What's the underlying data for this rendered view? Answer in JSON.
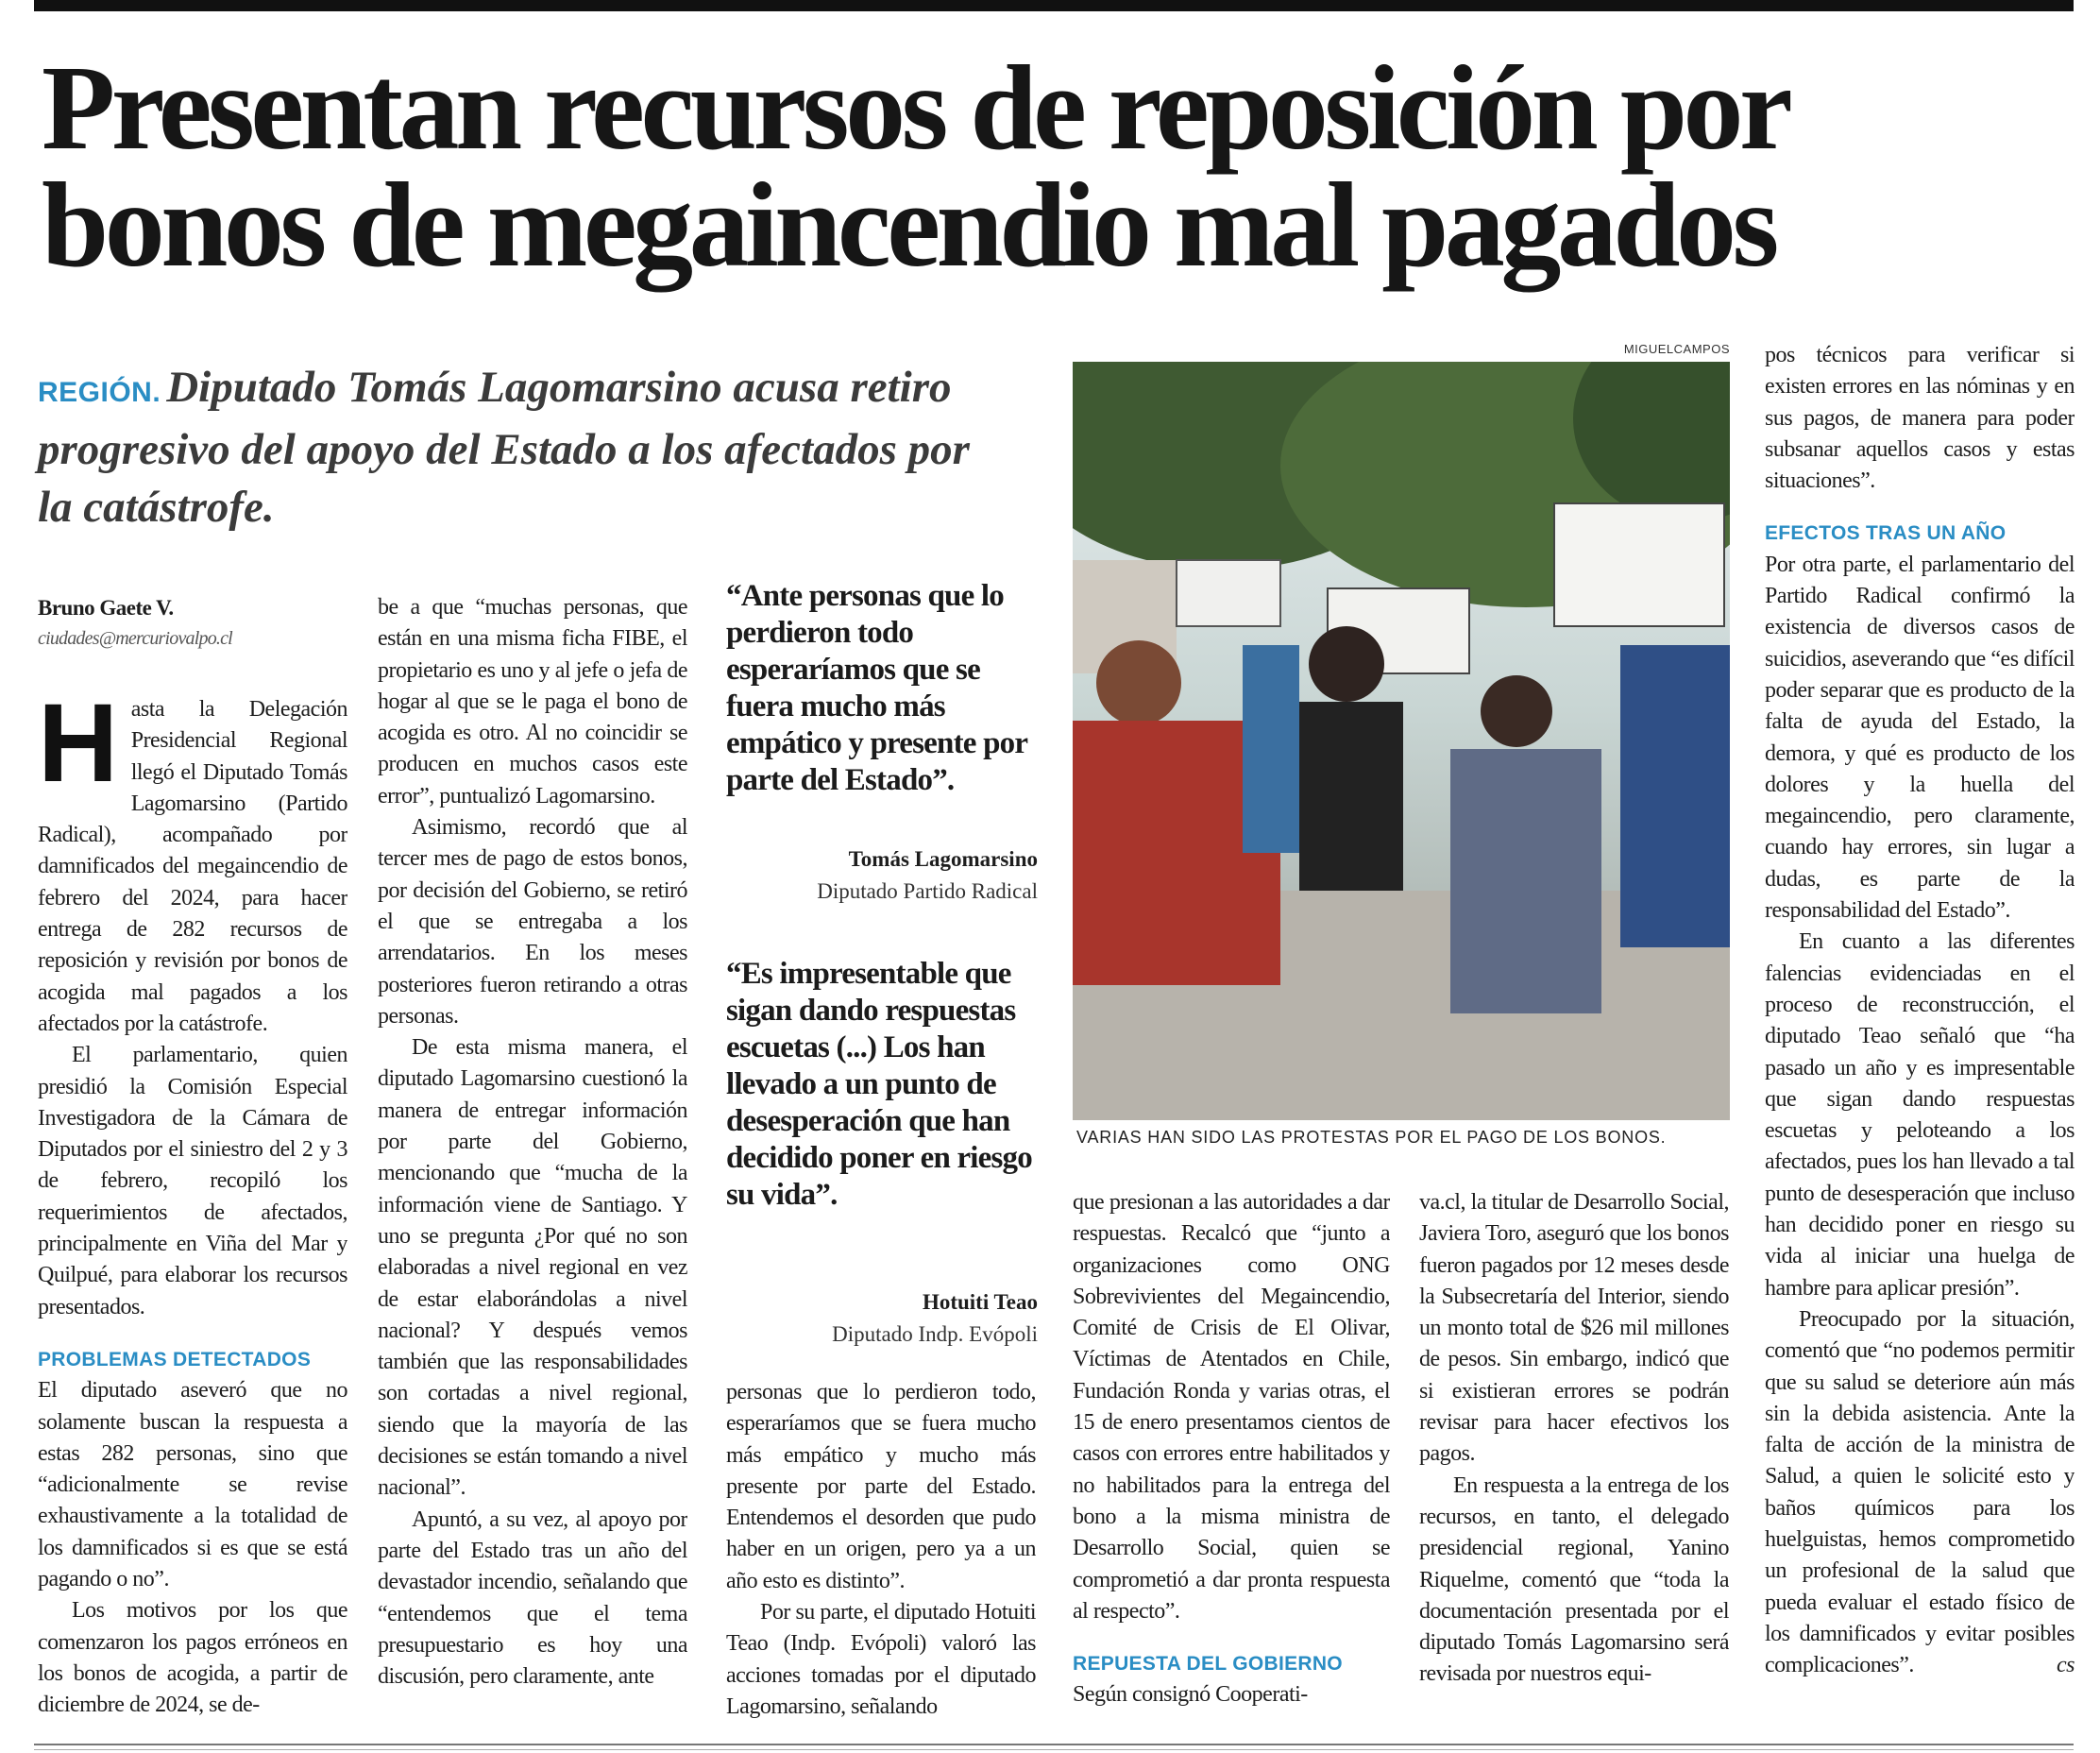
{
  "headline": {
    "line1": "Presentan recursos de reposición por",
    "line2": "bonos de megaincendio mal pagados"
  },
  "subhead": {
    "kicker": "REGIÓN.",
    "text": "Diputado Tomás Lagomarsino acusa retiro progresivo del apoyo del Estado a los afectados por la catástrofe."
  },
  "byline": {
    "author": "Bruno Gaete V.",
    "email": "ciudades@mercuriovalpo.cl"
  },
  "colors": {
    "accent": "#2a8dc4",
    "text": "#1d1d1d"
  },
  "col1": {
    "dropcap": "H",
    "p1": "asta la Delegación Presidencial Regional llegó el Diputado Tomás Lagomarsino (Partido Radical), acompañado por damnificados del megaincendio de febrero del 2024, para hacer entrega de 282 recursos de reposición y revisión por bonos de acogida mal pagados a los afectados por la catástrofe.",
    "p2": "El parlamentario, quien presidió la Comisión Especial Investigadora de la Cámara de Diputados por el siniestro del 2 y 3 de febrero, recopiló los requerimientos de afectados, principalmente en Viña del Mar y Quilpué, para elaborar los recursos presentados.",
    "heading": "PROBLEMAS DETECTADOS",
    "p3": "El diputado aseveró que no solamente buscan la respuesta a estas 282 personas, sino que “adicionalmente se revise exhaustivamente a la totalidad de los damnificados si es que se está pagando o no”.",
    "p4": "Los motivos por los que comenzaron los pagos erróneos en los bonos de acogida, a partir de diciembre de 2024, se de-"
  },
  "col2": {
    "p1": "be a que “muchas personas, que están en una misma ficha FIBE, el propietario es uno y al jefe o jefa de hogar al que se le paga el bono de acogida es otro. Al no coincidir se producen en muchos casos este error”, puntualizó Lagomarsino.",
    "p2": "Asimismo, recordó que al tercer mes de pago de estos bonos, por decisión del Gobierno, se retiró el que se entregaba a los arrendatarios. En los meses posteriores fueron retirando a otras personas.",
    "p3": "De esta misma manera, el diputado Lagomarsino cuestionó la manera de entregar información por parte del Gobierno, mencionando que “mucha de la información viene de Santiago. Y uno se pregunta ¿Por qué no son elaboradas a nivel regional en vez de estar elaborándolas a nivel nacional? Y después vemos también que las responsabilidades son cortadas a nivel regional, siendo que la mayoría de las decisiones se están tomando a nivel nacional”.",
    "p4": "Apuntó, a su vez, al apoyo por parte del Estado tras un año del devastador incendio, señalando que “entendemos que el tema presupuestario es hoy una discusión, pero claramente, ante"
  },
  "quotes": [
    {
      "text": "“Ante personas que lo perdieron todo esperaríamos que se fuera mucho más empático y presente por parte del Estado”.",
      "name": "Tomás Lagomarsino",
      "role": "Diputado Partido Radical"
    },
    {
      "text": "“Es impresentable que sigan dando respuestas escuetas (...) Los han llevado a un punto de desesperación que han decidido poner en riesgo su vida”.",
      "name": "Hotuiti Teao",
      "role": "Diputado Indp. Evópoli"
    }
  ],
  "col3": {
    "p1": "personas que lo perdieron todo, esperaríamos que se fuera mucho más empático y mucho más presente por parte del Estado. Entendemos el desorden que pudo haber en un origen, pero ya a un año esto es distinto”.",
    "p2": "Por su parte, el diputado Hotuiti Teao (Indp. Evópoli) valoró las acciones tomadas por el diputado Lagomarsino, señalando"
  },
  "photo": {
    "credit": "MIGUELCAMPOS",
    "caption": "VARIAS HAN SIDO LAS PROTESTAS POR EL PAGO DE LOS BONOS."
  },
  "col4": {
    "p1": "que presionan a las autoridades a dar respuestas. Recalcó que “junto a organizaciones como ONG Sobrevivientes del Megaincendio, Comité de Crisis de El Olivar, Víctimas de Atentados en Chile, Fundación Ronda y varias otras, el 15 de enero presentamos cientos de casos con errores entre habilitados y no habilitados para la entrega del bono a la misma ministra de Desarrollo Social, quien se comprometió a dar pronta respuesta al respecto”.",
    "heading": "REPUESTA DEL GOBIERNO",
    "p2": "Según consignó Cooperati-"
  },
  "col5": {
    "p1": "va.cl, la titular de Desarrollo Social, Javiera Toro, aseguró que los bonos fueron pagados por 12 meses desde la Subsecretaría del Interior, siendo un monto total de $26 mil millones de pesos. Sin embargo, indicó que si existieran errores se podrán revisar para hacer efectivos los pagos.",
    "p2": "En respuesta a la entrega de los recursos, en tanto, el delegado presidencial regional, Yanino Riquelme, comentó que “toda la documentación presentada por el diputado Tomás Lagomarsino será revisada por nuestros equi-"
  },
  "col6": {
    "p1": "pos técnicos para verificar si existen errores en las nóminas y en sus pagos, de manera para poder subsanar aquellos casos y estas situaciones”.",
    "heading": "EFECTOS TRAS UN AÑO",
    "p2": "Por otra parte, el parlamentario del Partido Radical confirmó la existencia de diversos casos de suicidios, aseverando que “es difícil poder separar que es producto de la falta de ayuda del Estado, la demora, y qué es producto de los dolores y la huella del megaincendio, pero claramente, cuando hay errores, sin lugar a dudas, es parte de la responsabilidad del Estado”.",
    "p3": "En cuanto a las diferentes falencias evidenciadas en el proceso de reconstrucción, el diputado Teao señaló que “ha pasado un año y es impresentable que sigan dando respuestas escuetas y peloteando a los afectados, pues los han llevado a tal punto de desesperación que incluso han decidido poner en riesgo su vida al iniciar una huelga de hambre para aplicar presión”.",
    "p4": "Preocupado por la situación, comentó que “no podemos permitir que su salud se deteriore aún más sin la debida asistencia. Ante la falta de acción de la ministra de Salud, a quien le solicité esto y baños químicos para los huelguistas, hemos comprometido un profesional de la salud que pueda evaluar el estado físico de los damnificados y evitar posibles complicaciones”.",
    "endmark": "cs"
  }
}
